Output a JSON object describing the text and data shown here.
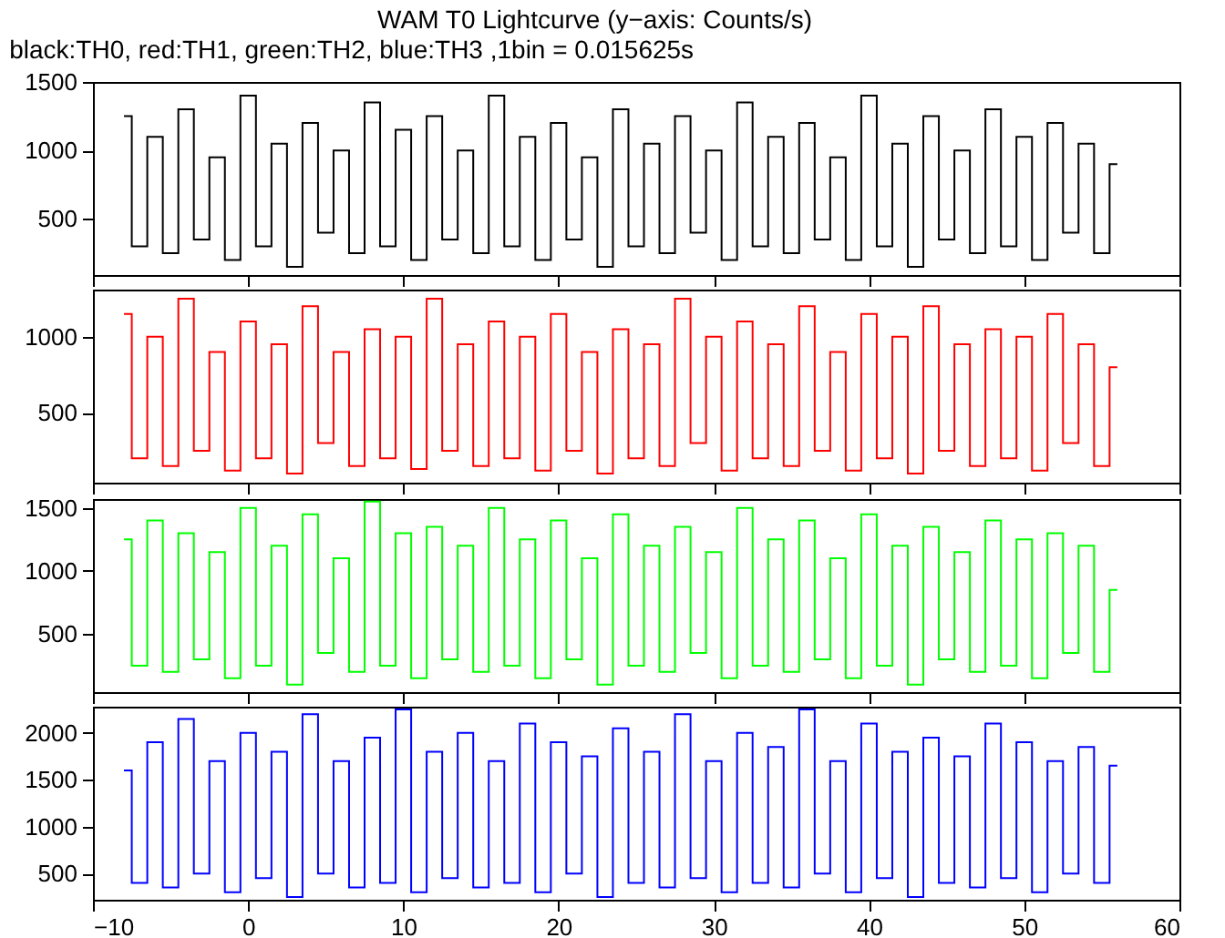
{
  "chart_data": [
    {
      "type": "step",
      "title": "WAM T0 Lightcurve (y−axis: Counts/s)",
      "subtitle": "black:TH0, red:TH1, green:TH2, blue:TH3 ,1bin = 0.015625s",
      "x": [
        -8,
        -7,
        -6,
        -5,
        -4,
        -3,
        -2,
        -1,
        0,
        1,
        2,
        3,
        4,
        5,
        6,
        7,
        8,
        9,
        10,
        11,
        12,
        13,
        14,
        15,
        16,
        17,
        18,
        19,
        20,
        21,
        22,
        23,
        24,
        25,
        26,
        27,
        28,
        29,
        30,
        31,
        32,
        33,
        34,
        35,
        36,
        37,
        38,
        39,
        40,
        41,
        42,
        43,
        44,
        45,
        46,
        47,
        48,
        49,
        50,
        51,
        52,
        53,
        54,
        55,
        56
      ],
      "xlim": [
        -10,
        60
      ],
      "xticks": [
        -10,
        0,
        10,
        20,
        30,
        40,
        50,
        60
      ],
      "ylim": [
        90,
        1500
      ],
      "yticks": [
        500,
        1000,
        1500
      ],
      "tick_labels": "y",
      "grid": false,
      "series": [
        {
          "color": "#000000",
          "values": [
            1250,
            300,
            1100,
            250,
            1300,
            350,
            950,
            200,
            1400,
            300,
            1050,
            150,
            1200,
            400,
            1000,
            250,
            1350,
            300,
            1150,
            200,
            1250,
            350,
            1000,
            250,
            1400,
            300,
            1100,
            200,
            1200,
            350,
            950,
            150,
            1300,
            300,
            1050,
            250,
            1250,
            400,
            1000,
            200,
            1350,
            300,
            1100,
            250,
            1200,
            350,
            950,
            200,
            1400,
            300,
            1050,
            150,
            1250,
            350,
            1000,
            250,
            1300,
            300,
            1100,
            200,
            1200,
            400,
            1050,
            250,
            900
          ]
        }
      ]
    },
    {
      "type": "step",
      "x": [
        -8,
        -7,
        -6,
        -5,
        -4,
        -3,
        -2,
        -1,
        0,
        1,
        2,
        3,
        4,
        5,
        6,
        7,
        8,
        9,
        10,
        11,
        12,
        13,
        14,
        15,
        16,
        17,
        18,
        19,
        20,
        21,
        22,
        23,
        24,
        25,
        26,
        27,
        28,
        29,
        30,
        31,
        32,
        33,
        34,
        35,
        36,
        37,
        38,
        39,
        40,
        41,
        42,
        43,
        44,
        45,
        46,
        47,
        48,
        49,
        50,
        51,
        52,
        53,
        54,
        55,
        56
      ],
      "xlim": [
        -10,
        60
      ],
      "xticks": [
        -10,
        0,
        10,
        20,
        30,
        40,
        50,
        60
      ],
      "ylim": [
        40,
        1310
      ],
      "yticks": [
        500,
        1000
      ],
      "tick_labels": "y",
      "grid": false,
      "series": [
        {
          "color": "#ff0000",
          "values": [
            1150,
            200,
            1000,
            150,
            1250,
            250,
            900,
            120,
            1100,
            200,
            950,
            100,
            1200,
            300,
            900,
            150,
            1050,
            200,
            1000,
            130,
            1250,
            250,
            950,
            150,
            1100,
            200,
            1000,
            120,
            1150,
            250,
            900,
            100,
            1050,
            200,
            950,
            150,
            1250,
            300,
            1000,
            120,
            1100,
            200,
            950,
            150,
            1200,
            250,
            900,
            120,
            1150,
            200,
            1000,
            100,
            1200,
            250,
            950,
            150,
            1050,
            200,
            1000,
            120,
            1150,
            300,
            950,
            150,
            800
          ]
        }
      ]
    },
    {
      "type": "step",
      "x": [
        -8,
        -7,
        -6,
        -5,
        -4,
        -3,
        -2,
        -1,
        0,
        1,
        2,
        3,
        4,
        5,
        6,
        7,
        8,
        9,
        10,
        11,
        12,
        13,
        14,
        15,
        16,
        17,
        18,
        19,
        20,
        21,
        22,
        23,
        24,
        25,
        26,
        27,
        28,
        29,
        30,
        31,
        32,
        33,
        34,
        35,
        36,
        37,
        38,
        39,
        40,
        41,
        42,
        43,
        44,
        45,
        46,
        47,
        48,
        49,
        50,
        51,
        52,
        53,
        54,
        55,
        56
      ],
      "xlim": [
        -10,
        60
      ],
      "xticks": [
        -10,
        0,
        10,
        20,
        30,
        40,
        50,
        60
      ],
      "ylim": [
        40,
        1570
      ],
      "yticks": [
        500,
        1000,
        1500
      ],
      "tick_labels": "y",
      "grid": false,
      "series": [
        {
          "color": "#00ff00",
          "values": [
            1250,
            250,
            1400,
            200,
            1300,
            300,
            1150,
            150,
            1500,
            250,
            1200,
            100,
            1450,
            350,
            1100,
            200,
            1550,
            250,
            1300,
            150,
            1350,
            300,
            1200,
            200,
            1500,
            250,
            1250,
            150,
            1400,
            300,
            1100,
            100,
            1450,
            250,
            1200,
            200,
            1350,
            350,
            1150,
            150,
            1500,
            250,
            1250,
            200,
            1400,
            300,
            1100,
            150,
            1450,
            250,
            1200,
            100,
            1350,
            300,
            1150,
            200,
            1400,
            250,
            1250,
            150,
            1300,
            350,
            1200,
            200,
            850
          ]
        }
      ]
    },
    {
      "type": "step",
      "x": [
        -8,
        -7,
        -6,
        -5,
        -4,
        -3,
        -2,
        -1,
        0,
        1,
        2,
        3,
        4,
        5,
        6,
        7,
        8,
        9,
        10,
        11,
        12,
        13,
        14,
        15,
        16,
        17,
        18,
        19,
        20,
        21,
        22,
        23,
        24,
        25,
        26,
        27,
        28,
        29,
        30,
        31,
        32,
        33,
        34,
        35,
        36,
        37,
        38,
        39,
        40,
        41,
        42,
        43,
        44,
        45,
        46,
        47,
        48,
        49,
        50,
        51,
        52,
        53,
        54,
        55,
        56
      ],
      "xlim": [
        -10,
        60
      ],
      "xticks": [
        -10,
        0,
        10,
        20,
        30,
        40,
        50,
        60
      ],
      "ylim": [
        220,
        2280
      ],
      "yticks": [
        500,
        1000,
        1500,
        2000
      ],
      "grid": false,
      "series": [
        {
          "color": "#0000ff",
          "values": [
            1600,
            400,
            1900,
            350,
            2150,
            500,
            1700,
            300,
            2000,
            450,
            1800,
            250,
            2200,
            500,
            1700,
            350,
            1950,
            400,
            2250,
            300,
            1800,
            450,
            2000,
            350,
            1700,
            400,
            2100,
            300,
            1900,
            500,
            1750,
            250,
            2050,
            400,
            1800,
            350,
            2200,
            450,
            1700,
            300,
            2000,
            400,
            1850,
            350,
            2250,
            500,
            1700,
            300,
            2100,
            450,
            1800,
            250,
            1950,
            400,
            1750,
            350,
            2100,
            450,
            1900,
            300,
            1700,
            500,
            1850,
            400,
            1650
          ]
        }
      ]
    }
  ]
}
